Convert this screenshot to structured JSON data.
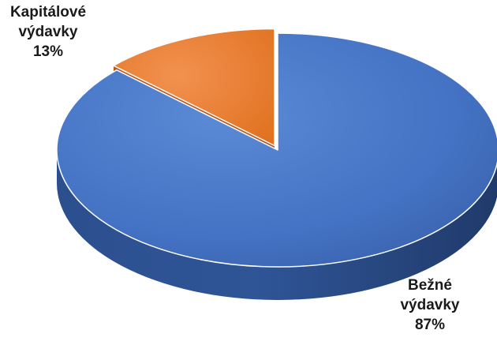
{
  "chart_data": {
    "type": "pie",
    "style": "3d",
    "title": "",
    "legend": "none",
    "series": [
      {
        "values": [
          87,
          13
        ],
        "categories": [
          "Bežné výdavky",
          "Kapitálové výdavky"
        ]
      }
    ],
    "slices": [
      {
        "label_lines": [
          "Bežné",
          "výdavky"
        ],
        "value": 87,
        "value_label": "87%",
        "color": "#4472C4"
      },
      {
        "label_lines": [
          "Kapitálové",
          "výdavky"
        ],
        "value": 13,
        "value_label": "13%",
        "color": "#ED7D31",
        "exploded": true
      }
    ]
  }
}
